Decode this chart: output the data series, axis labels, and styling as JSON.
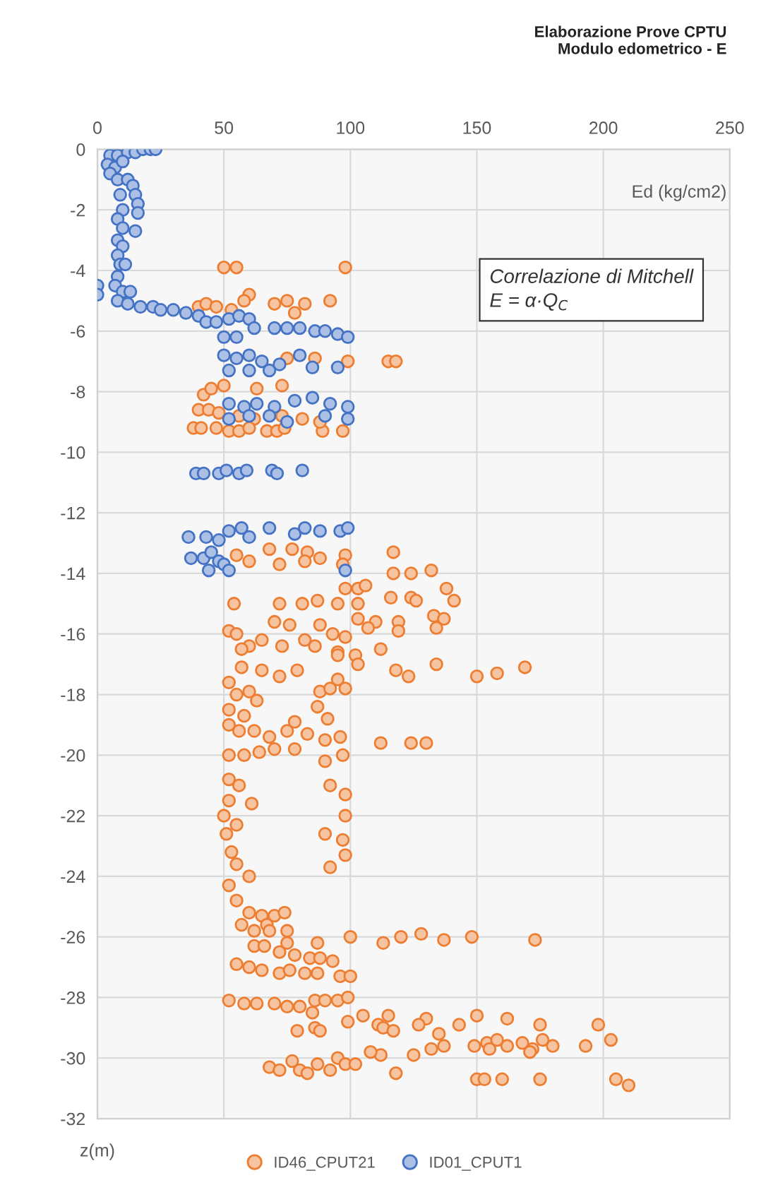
{
  "chart_data": {
    "type": "scatter",
    "title": "Elaborazione Prove CPTU\nModulo edometrico - E",
    "xlabel": "Ed (kg/cm2)",
    "ylabel": "z(m)",
    "annotations": [
      "Correlazione di Mitchell\nE = α·Q$_{C}$"
    ],
    "xlim": [
      0,
      250
    ],
    "xticks": [
      0,
      50,
      100,
      150,
      200,
      250
    ],
    "ylim": [
      -32,
      0
    ],
    "yticks": [
      0,
      -2,
      -4,
      -6,
      -8,
      -10,
      -12,
      -14,
      -16,
      -18,
      -20,
      -22,
      -24,
      -26,
      -28,
      -30,
      -32
    ],
    "grid": true,
    "legend": "bottom",
    "marker": "circle",
    "series": [
      {
        "name": "ID46_CPUT21",
        "color": "#ed7d31",
        "x": [
          50,
          55,
          98,
          60,
          40,
          43,
          47,
          53,
          58,
          70,
          75,
          78,
          82,
          92,
          86,
          99,
          115,
          118,
          75,
          73,
          50,
          63,
          42,
          45,
          40,
          44,
          48,
          56,
          62,
          73,
          81,
          38,
          41,
          47,
          52,
          56,
          60,
          67,
          71,
          74,
          89,
          97,
          88,
          55,
          68,
          77,
          83,
          88,
          98,
          117,
          60,
          72,
          82,
          97,
          117,
          124,
          132,
          98,
          103,
          106,
          54,
          72,
          81,
          87,
          95,
          103,
          116,
          124,
          126,
          138,
          141,
          103,
          110,
          119,
          133,
          137,
          52,
          55,
          60,
          65,
          70,
          76,
          82,
          88,
          93,
          98,
          107,
          119,
          134,
          57,
          73,
          86,
          95,
          95,
          102,
          112,
          57,
          65,
          72,
          79,
          95,
          103,
          118,
          123,
          134,
          150,
          158,
          169,
          52,
          55,
          60,
          63,
          52,
          58,
          88,
          92,
          98,
          87,
          91,
          52,
          56,
          62,
          68,
          75,
          83,
          78,
          90,
          96,
          112,
          124,
          130,
          52,
          58,
          64,
          70,
          78,
          90,
          97,
          52,
          56,
          92,
          98,
          52,
          61,
          98,
          50,
          55,
          51,
          90,
          97,
          53,
          98,
          92,
          55,
          60,
          52,
          55,
          60,
          65,
          70,
          74,
          57,
          62,
          67,
          62,
          66,
          72,
          75,
          78,
          84,
          88,
          93,
          68,
          75,
          87,
          100,
          113,
          120,
          128,
          137,
          148,
          173,
          55,
          60,
          65,
          72,
          76,
          82,
          87,
          96,
          100,
          52,
          58,
          63,
          70,
          75,
          80,
          86,
          90,
          95,
          99,
          85,
          105,
          115,
          130,
          143,
          150,
          162,
          175,
          198,
          86,
          79,
          88,
          99,
          111,
          113,
          117,
          127,
          135,
          137,
          149,
          154,
          158,
          162,
          168,
          172,
          176,
          180,
          193,
          203,
          112,
          108,
          132,
          125,
          155,
          171,
          68,
          72,
          77,
          80,
          83,
          87,
          92,
          95,
          98,
          102,
          118,
          150,
          153,
          160,
          175,
          205,
          210
        ],
        "values": [
          -3.9,
          -3.9,
          -3.9,
          -4.8,
          -5.2,
          -5.1,
          -5.2,
          -5.3,
          -5,
          -5.1,
          -5,
          -5.4,
          -5.1,
          -5,
          -6.9,
          -7,
          -7,
          -7,
          -6.9,
          -7.8,
          -7.8,
          -7.9,
          -8.1,
          -7.9,
          -8.6,
          -8.6,
          -8.7,
          -8.8,
          -8.9,
          -8.8,
          -8.9,
          -9.2,
          -9.2,
          -9.2,
          -9.3,
          -9.3,
          -9.2,
          -9.3,
          -9.3,
          -9.2,
          -9.3,
          -9.3,
          -9,
          -13.4,
          -13.2,
          -13.2,
          -13.3,
          -13.5,
          -13.4,
          -13.3,
          -13.6,
          -13.7,
          -13.6,
          -13.7,
          -14,
          -14,
          -13.9,
          -14.5,
          -14.5,
          -14.4,
          -15,
          -15,
          -15,
          -14.9,
          -15,
          -15,
          -14.8,
          -14.8,
          -14.9,
          -14.5,
          -14.9,
          -15.5,
          -15.6,
          -15.6,
          -15.4,
          -15.5,
          -15.9,
          -16,
          -16.4,
          -16.2,
          -15.6,
          -15.7,
          -16.2,
          -15.7,
          -16,
          -16.1,
          -15.8,
          -15.9,
          -15.8,
          -16.5,
          -16.4,
          -16.4,
          -16.6,
          -16.7,
          -16.7,
          -16.5,
          -17.1,
          -17.2,
          -17.4,
          -17.2,
          -17.5,
          -17,
          -17.2,
          -17.4,
          -17,
          -17.4,
          -17.3,
          -17.1,
          -17.6,
          -18,
          -17.9,
          -18.2,
          -18.5,
          -18.7,
          -17.9,
          -17.8,
          -17.8,
          -18.4,
          -18.8,
          -19,
          -19.2,
          -19.2,
          -19.4,
          -19.2,
          -19.3,
          -18.9,
          -19.5,
          -19.4,
          -19.6,
          -19.6,
          -19.6,
          -20,
          -20,
          -19.9,
          -19.8,
          -19.8,
          -20.2,
          -20,
          -20.8,
          -21,
          -21,
          -21.3,
          -21.5,
          -21.6,
          -22,
          -22,
          -22.3,
          -22.6,
          -22.6,
          -22.8,
          -23.2,
          -23.3,
          -23.7,
          -23.6,
          -24,
          -24.3,
          -24.8,
          -25.2,
          -25.3,
          -25.3,
          -25.2,
          -25.6,
          -25.8,
          -25.6,
          -26.3,
          -26.3,
          -26.5,
          -26.2,
          -26.6,
          -26.7,
          -26.7,
          -26.8,
          -25.8,
          -25.8,
          -26.2,
          -26,
          -26.2,
          -26,
          -25.9,
          -26.1,
          -26,
          -26.1,
          -26.9,
          -27,
          -27.1,
          -27.2,
          -27.1,
          -27.2,
          -27.2,
          -27.3,
          -27.3,
          -28.1,
          -28.2,
          -28.2,
          -28.2,
          -28.3,
          -28.3,
          -28.1,
          -28.1,
          -28.1,
          -28,
          -28.5,
          -28.6,
          -28.6,
          -28.7,
          -28.9,
          -28.6,
          -28.7,
          -28.9,
          -28.9,
          -29,
          -29.1,
          -29.1,
          -28.8,
          -28.9,
          -29,
          -29.1,
          -28.9,
          -29.2,
          -29.6,
          -29.6,
          -29.5,
          -29.4,
          -29.6,
          -29.5,
          -29.7,
          -29.4,
          -29.6,
          -29.6,
          -29.4,
          -29.9,
          -29.8,
          -29.7,
          -29.9,
          -29.7,
          -29.8,
          -30.3,
          -30.4,
          -30.1,
          -30.4,
          -30.5,
          -30.2,
          -30.4,
          -30,
          -30.2,
          -30.2,
          -30.5,
          -30.7,
          -30.7,
          -30.7,
          -30.7,
          -30.7,
          -30.9
        ]
      },
      {
        "name": "ID01_CPUT1",
        "color": "#4472c4",
        "x": [
          5,
          8,
          12,
          15,
          18,
          21,
          23,
          4,
          7,
          10,
          5,
          8,
          12,
          14,
          9,
          15,
          16,
          10,
          16,
          8,
          10,
          15,
          8,
          10,
          8,
          9,
          11,
          8,
          7,
          10,
          13,
          0,
          0,
          8,
          12,
          17,
          22,
          25,
          30,
          35,
          40,
          43,
          47,
          52,
          56,
          60,
          62,
          70,
          75,
          80,
          86,
          90,
          95,
          99,
          50,
          55,
          50,
          55,
          60,
          65,
          72,
          80,
          85,
          95,
          52,
          60,
          68,
          52,
          58,
          63,
          70,
          78,
          85,
          92,
          99,
          52,
          60,
          68,
          75,
          90,
          99,
          39,
          42,
          48,
          51,
          56,
          59,
          69,
          71,
          81,
          36,
          43,
          48,
          52,
          57,
          60,
          68,
          78,
          82,
          88,
          96,
          99,
          37,
          42,
          45,
          48,
          50,
          44,
          52,
          98
        ],
        "values": [
          -0.2,
          -0.2,
          -0.1,
          -0.1,
          0,
          0,
          0,
          -0.5,
          -0.6,
          -0.4,
          -0.8,
          -1,
          -1,
          -1.2,
          -1.5,
          -1.5,
          -1.8,
          -2,
          -2.1,
          -2.3,
          -2.6,
          -2.7,
          -3,
          -3.2,
          -3.5,
          -3.8,
          -3.8,
          -4.2,
          -4.5,
          -4.7,
          -4.7,
          -4.5,
          -4.8,
          -5,
          -5.1,
          -5.2,
          -5.2,
          -5.3,
          -5.3,
          -5.4,
          -5.5,
          -5.7,
          -5.7,
          -5.6,
          -5.5,
          -5.6,
          -5.9,
          -5.9,
          -5.9,
          -5.9,
          -6,
          -6,
          -6.1,
          -6.2,
          -6.2,
          -6.2,
          -6.8,
          -6.9,
          -6.8,
          -7,
          -7.1,
          -6.8,
          -7.2,
          -7.2,
          -7.3,
          -7.3,
          -7.3,
          -8.4,
          -8.5,
          -8.4,
          -8.5,
          -8.3,
          -8.2,
          -8.4,
          -8.5,
          -8.9,
          -8.8,
          -8.8,
          -9,
          -8.8,
          -8.9,
          -10.7,
          -10.7,
          -10.7,
          -10.6,
          -10.7,
          -10.6,
          -10.6,
          -10.7,
          -10.6,
          -12.8,
          -12.8,
          -12.9,
          -12.6,
          -12.5,
          -12.8,
          -12.5,
          -12.7,
          -12.5,
          -12.6,
          -12.6,
          -12.5,
          -13.5,
          -13.5,
          -13.3,
          -13.6,
          -13.7,
          -13.9,
          -13.9,
          -13.9
        ]
      }
    ]
  }
}
